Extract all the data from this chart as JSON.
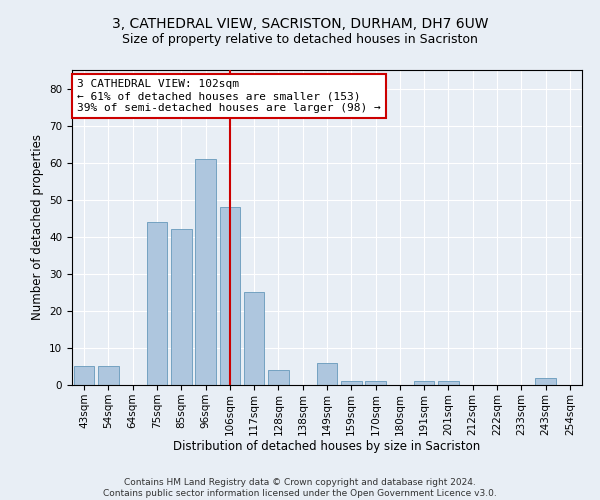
{
  "title_line1": "3, CATHEDRAL VIEW, SACRISTON, DURHAM, DH7 6UW",
  "title_line2": "Size of property relative to detached houses in Sacriston",
  "xlabel": "Distribution of detached houses by size in Sacriston",
  "ylabel": "Number of detached properties",
  "categories": [
    "43sqm",
    "54sqm",
    "64sqm",
    "75sqm",
    "85sqm",
    "96sqm",
    "106sqm",
    "117sqm",
    "128sqm",
    "138sqm",
    "149sqm",
    "159sqm",
    "170sqm",
    "180sqm",
    "191sqm",
    "201sqm",
    "212sqm",
    "222sqm",
    "233sqm",
    "243sqm",
    "254sqm"
  ],
  "values": [
    5,
    5,
    0,
    44,
    42,
    61,
    48,
    25,
    4,
    0,
    6,
    1,
    1,
    0,
    1,
    1,
    0,
    0,
    0,
    2,
    0
  ],
  "bar_color": "#aec6de",
  "bar_edge_color": "#6699bb",
  "vline_x": 6,
  "vline_color": "#cc0000",
  "annotation_text": "3 CATHEDRAL VIEW: 102sqm\n← 61% of detached houses are smaller (153)\n39% of semi-detached houses are larger (98) →",
  "annotation_box_color": "white",
  "annotation_box_edgecolor": "#cc0000",
  "ylim": [
    0,
    85
  ],
  "yticks": [
    0,
    10,
    20,
    30,
    40,
    50,
    60,
    70,
    80
  ],
  "footnote": "Contains HM Land Registry data © Crown copyright and database right 2024.\nContains public sector information licensed under the Open Government Licence v3.0.",
  "background_color": "#e8eef5",
  "plot_bg_color": "#e8eef5",
  "title_fontsize": 10,
  "subtitle_fontsize": 9,
  "tick_fontsize": 7.5,
  "label_fontsize": 8.5,
  "annotation_fontsize": 8
}
